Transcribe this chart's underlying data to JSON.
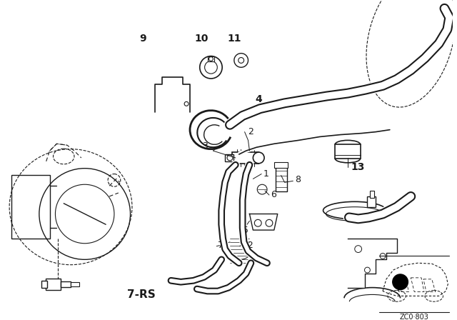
{
  "bg_color": "#ffffff",
  "lc": "#1a1a1a",
  "fig_w": 6.4,
  "fig_h": 4.48,
  "dpi": 100,
  "watermark": "ZC0·803"
}
